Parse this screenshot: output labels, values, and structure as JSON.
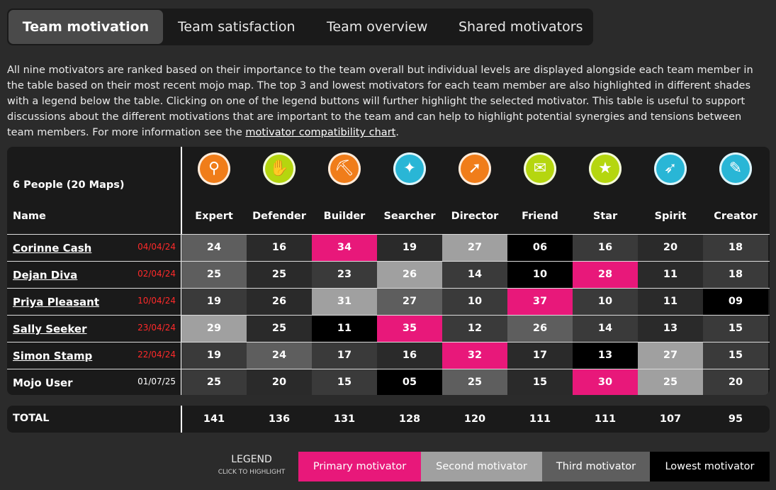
{
  "tabs": [
    {
      "label": "Team motivation",
      "active": true
    },
    {
      "label": "Team satisfaction",
      "active": false
    },
    {
      "label": "Team overview",
      "active": false
    },
    {
      "label": "Shared motivators",
      "active": false
    }
  ],
  "description": {
    "text": "All nine motivators are ranked based on their importance to the team overall but individual levels are displayed alongside each team member in the table based on their most recent mojo map. The top 3 and lowest motivators for each team member are also highlighted in different shades with a legend below the table. Clicking on one of the legend buttons will further highlight the selected motivator. This table is useful to support discussions about the different motivations that are important to the team and can help to highlight potential synergies and tensions between team members. For more information see the ",
    "link_text": "motivator compatibility chart",
    "end": "."
  },
  "table": {
    "people_count": "6 People (20 Maps)",
    "name_header": "Name",
    "columns": [
      {
        "label": "Expert",
        "icon": "magnifier-icon",
        "color": "#f07d1a"
      },
      {
        "label": "Defender",
        "icon": "hand-icon",
        "color": "#b5d60f"
      },
      {
        "label": "Builder",
        "icon": "trowel-icon",
        "color": "#f07d1a"
      },
      {
        "label": "Searcher",
        "icon": "compass-icon",
        "color": "#29b6d6"
      },
      {
        "label": "Director",
        "icon": "arrow-icon",
        "color": "#f07d1a"
      },
      {
        "label": "Friend",
        "icon": "envelope-icon",
        "color": "#b5d60f"
      },
      {
        "label": "Star",
        "icon": "star-icon",
        "color": "#b5d60f"
      },
      {
        "label": "Spirit",
        "icon": "bird-icon",
        "color": "#29b6d6"
      },
      {
        "label": "Creator",
        "icon": "palette-icon",
        "color": "#29b6d6"
      }
    ],
    "rows": [
      {
        "name": "Corinne Cash",
        "date": "04/04/24",
        "link": true,
        "values": [
          "24",
          "16",
          "34",
          "19",
          "27",
          "06",
          "16",
          "20",
          "18"
        ],
        "levels": [
          "third",
          "",
          "primary",
          "",
          "second",
          "lowest",
          "",
          "",
          ""
        ]
      },
      {
        "name": "Dejan Diva",
        "date": "02/04/24",
        "link": true,
        "values": [
          "25",
          "25",
          "23",
          "26",
          "14",
          "10",
          "28",
          "11",
          "18"
        ],
        "levels": [
          "third",
          "",
          "",
          "second",
          "",
          "lowest",
          "primary",
          "",
          ""
        ]
      },
      {
        "name": "Priya Pleasant",
        "date": "10/04/24",
        "link": true,
        "values": [
          "19",
          "26",
          "31",
          "27",
          "10",
          "37",
          "10",
          "11",
          "09"
        ],
        "levels": [
          "",
          "",
          "second",
          "third",
          "",
          "primary",
          "",
          "",
          "lowest"
        ]
      },
      {
        "name": "Sally Seeker",
        "date": "23/04/24",
        "link": true,
        "values": [
          "29",
          "25",
          "11",
          "35",
          "12",
          "26",
          "14",
          "13",
          "15"
        ],
        "levels": [
          "second",
          "",
          "lowest",
          "primary",
          "",
          "third",
          "",
          "",
          ""
        ]
      },
      {
        "name": "Simon Stamp",
        "date": "22/04/24",
        "link": true,
        "values": [
          "19",
          "24",
          "17",
          "16",
          "32",
          "17",
          "13",
          "27",
          "15"
        ],
        "levels": [
          "",
          "third",
          "",
          "",
          "primary",
          "",
          "lowest",
          "second",
          ""
        ]
      },
      {
        "name": "Mojo User",
        "date": "01/07/25",
        "link": false,
        "values": [
          "25",
          "20",
          "15",
          "05",
          "25",
          "15",
          "30",
          "25",
          "20"
        ],
        "levels": [
          "",
          "",
          "",
          "lowest",
          "third",
          "",
          "primary",
          "second",
          ""
        ]
      }
    ],
    "total": {
      "label": "TOTAL",
      "values": [
        "141",
        "136",
        "131",
        "128",
        "120",
        "111",
        "111",
        "107",
        "95"
      ]
    }
  },
  "legend": {
    "title": "LEGEND",
    "subtitle": "CLICK TO HIGHLIGHT",
    "buttons": [
      {
        "label": "Primary motivator",
        "color": "#e8187a",
        "text_color": "#ffffff"
      },
      {
        "label": "Second motivator",
        "color": "#a0a0a0",
        "text_color": "#ffffff"
      },
      {
        "label": "Third motivator",
        "color": "#5e5e5e",
        "text_color": "#ffffff"
      },
      {
        "label": "Lowest motivator",
        "color": "#000000",
        "text_color": "#ffffff"
      }
    ]
  },
  "colors": {
    "primary": "#e8187a",
    "second": "#a0a0a0",
    "third": "#5e5e5e",
    "lowest": "#000000",
    "stripe_a": "#3a3a3a",
    "stripe_b": "#2a2a2a"
  }
}
